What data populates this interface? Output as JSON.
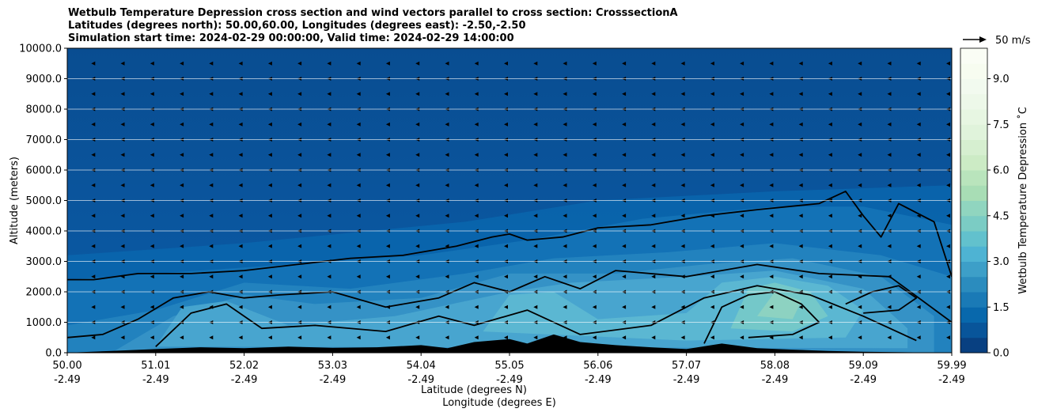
{
  "title_lines": [
    "Wetbulb Temperature Depression cross section and wind vectors parallel to cross section: CrosssectionA",
    "Latitudes (degrees north): 50.00,60.00, Longitudes (degrees east): -2.50,-2.50",
    "Simulation start time: 2024-02-29 00:00:00, Valid time: 2024-02-29 14:00:00"
  ],
  "chart_data": {
    "type": "heatmap",
    "title": "Wetbulb Temperature Depression cross section and wind vectors parallel to cross section: CrosssectionA",
    "subtitle_lines": [
      "Latitudes (degrees north): 50.00,60.00, Longitudes (degrees east): -2.50,-2.50",
      "Simulation start time: 2024-02-29 00:00:00, Valid time: 2024-02-29 14:00:00"
    ],
    "ylabel": "Altitude (meters)",
    "xlabel_lines": [
      "Latitude (degrees N)",
      "Longitude (degrees E)"
    ],
    "xlim": [
      50.0,
      59.99
    ],
    "ylim": [
      0,
      10000
    ],
    "y_ticks": [
      "0.0",
      "1000.0",
      "2000.0",
      "3000.0",
      "4000.0",
      "5000.0",
      "6000.0",
      "7000.0",
      "8000.0",
      "9000.0",
      "10000.0"
    ],
    "x_ticks": [
      {
        "lat": "50.00",
        "lon": "-2.49"
      },
      {
        "lat": "51.01",
        "lon": "-2.49"
      },
      {
        "lat": "52.02",
        "lon": "-2.49"
      },
      {
        "lat": "53.03",
        "lon": "-2.49"
      },
      {
        "lat": "54.04",
        "lon": "-2.49"
      },
      {
        "lat": "55.05",
        "lon": "-2.49"
      },
      {
        "lat": "56.06",
        "lon": "-2.49"
      },
      {
        "lat": "57.07",
        "lon": "-2.49"
      },
      {
        "lat": "58.08",
        "lon": "-2.49"
      },
      {
        "lat": "59.09",
        "lon": "-2.49"
      },
      {
        "lat": "59.99",
        "lon": "-2.49"
      }
    ],
    "grid": "horizontal",
    "colorbar": {
      "label": "Wetbulb Temperature Depression ˚C",
      "range": [
        0,
        10
      ],
      "levels": 20,
      "ticks": [
        "0.0",
        "1.5",
        "3.0",
        "4.5",
        "6.0",
        "7.5",
        "9.0"
      ],
      "colors": [
        "#084081",
        "#08559a",
        "#0868ac",
        "#1a7ab6",
        "#2b8cbe",
        "#3d9fc8",
        "#4eb3d3",
        "#62c1cd",
        "#7bccc4",
        "#90d5bf",
        "#a8ddb5",
        "#b9e4bc",
        "#ccebc5",
        "#d6efd0",
        "#e0f3db",
        "#e7f6e2",
        "#edf8e9",
        "#f2faef",
        "#f7fcf0",
        "#fafdf5"
      ]
    },
    "contour_levels": [
      1.0,
      2.0,
      3.0,
      4.0
    ],
    "wind_vector_key": "50 m/s",
    "wind_direction": "westward (negative along section)"
  }
}
